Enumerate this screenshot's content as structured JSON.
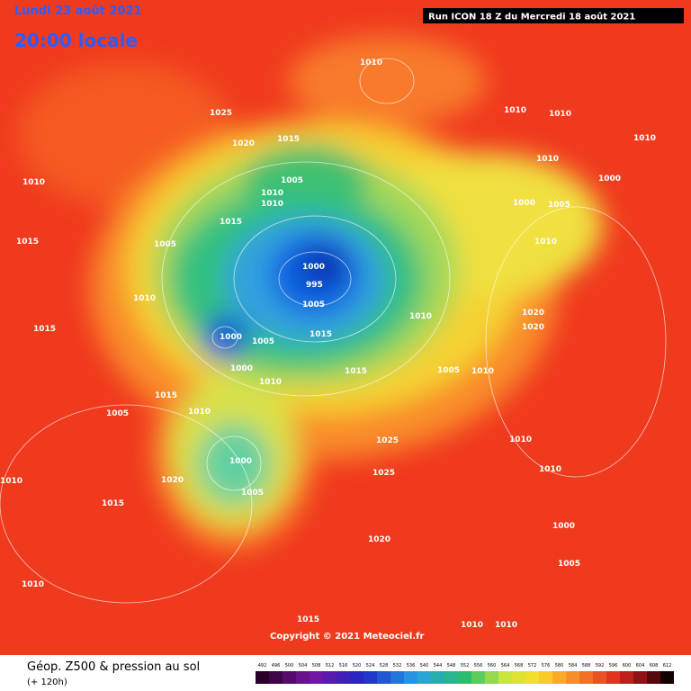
{
  "header": {
    "date": "Lundi 23 août 2021",
    "time": "20:00 locale",
    "run": "Run ICON 18 Z du Mercredi 18 août 2021"
  },
  "copyright": "Copyright © 2021 Meteociel.fr",
  "footer": {
    "title": "Géop. Z500 & pression au sol",
    "lead": "(+ 120h)"
  },
  "colorbar": {
    "ticks": [
      492,
      496,
      500,
      504,
      508,
      512,
      516,
      520,
      524,
      528,
      532,
      536,
      540,
      544,
      548,
      552,
      556,
      560,
      564,
      568,
      572,
      576,
      580,
      584,
      588,
      592,
      596,
      600,
      604,
      608,
      612
    ]
  },
  "isobar_labels": [
    "1010",
    "1025",
    "1020",
    "1015",
    "1010",
    "1005",
    "1010",
    "1010",
    "1015",
    "1005",
    "1015",
    "1010",
    "1000",
    "995",
    "1005",
    "1000",
    "1005",
    "1015",
    "1010",
    "1000",
    "1010",
    "1015",
    "1005",
    "1010",
    "1015",
    "1015",
    "1005",
    "1010",
    "1025",
    "1000",
    "1005",
    "1020",
    "1015",
    "1010",
    "1010",
    "1010",
    "1010",
    "1010",
    "1010",
    "1000",
    "1000",
    "1005",
    "1010",
    "1020",
    "1020",
    "1010",
    "1010",
    "1000",
    "1005",
    "1010",
    "1010",
    "1015",
    "1020",
    "1025"
  ]
}
